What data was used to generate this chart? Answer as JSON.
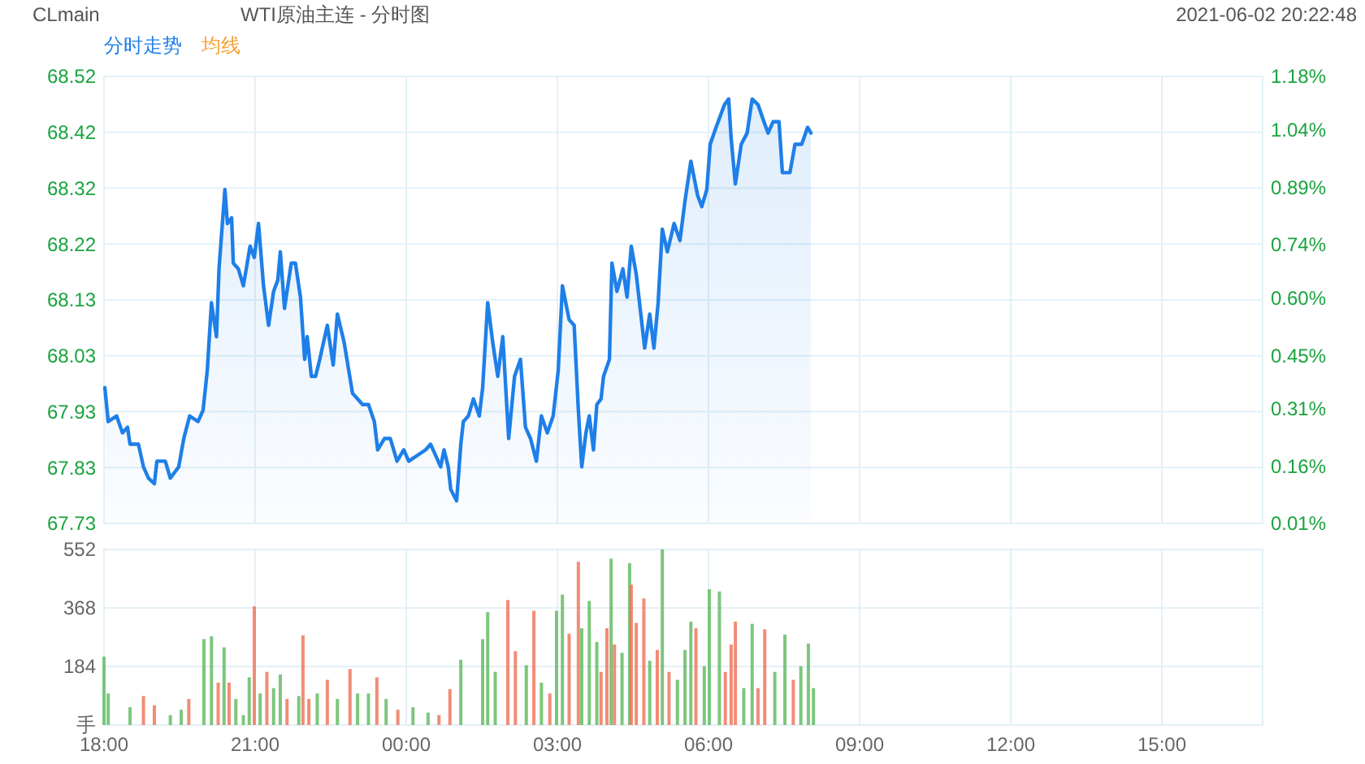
{
  "chart_data": [
    {
      "type": "area",
      "title": "WTI原油主连 - 分时图",
      "annotations": [
        "CLmain",
        "2021-06-02 20:22:48"
      ],
      "xlim": [
        "2021-06-01T18:00",
        "2021-06-02T17:00"
      ],
      "xticks": [
        {
          "value": "2021-06-01T18:00",
          "label": null
        },
        {
          "value": "2021-06-01T21:00",
          "label": null
        },
        {
          "value": "2021-06-02T00:00",
          "label": null
        },
        {
          "value": "2021-06-02T03:00",
          "label": null
        },
        {
          "value": "2021-06-02T06:00",
          "label": null
        },
        {
          "value": "2021-06-02T09:00",
          "label": null
        },
        {
          "value": "2021-06-02T12:00",
          "label": null
        },
        {
          "value": "2021-06-02T15:00",
          "label": null
        }
      ],
      "ylim": [
        67.73,
        68.52
      ],
      "yticks": [
        {
          "value": 67.73,
          "label": "67.73"
        },
        {
          "value": 67.82875,
          "label": "67.83"
        },
        {
          "value": 67.9275,
          "label": "67.93"
        },
        {
          "value": 68.02625,
          "label": "68.03"
        },
        {
          "value": 68.125,
          "label": "68.13"
        },
        {
          "value": 68.22375,
          "label": "68.22"
        },
        {
          "value": 68.3225,
          "label": "68.32"
        },
        {
          "value": 68.42125,
          "label": "68.42"
        },
        {
          "value": 68.52,
          "label": "68.52"
        }
      ],
      "y2lim": [
        0.01,
        1.18
      ],
      "y2ticks": [
        {
          "value": 0.01,
          "label": "0.01%"
        },
        {
          "value": 0.16,
          "label": "0.16%"
        },
        {
          "value": 0.31,
          "label": "0.31%"
        },
        {
          "value": 0.45,
          "label": "0.45%"
        },
        {
          "value": 0.6,
          "label": "0.60%"
        },
        {
          "value": 0.74,
          "label": "0.74%"
        },
        {
          "value": 0.89,
          "label": "0.89%"
        },
        {
          "value": 1.04,
          "label": "1.04%"
        },
        {
          "value": 1.18,
          "label": "1.18%"
        }
      ],
      "grid": true,
      "legend": "top left",
      "tick_labels": "y",
      "series": [
        {
          "name": "分时走势",
          "color": "#1e7fe8",
          "x": [
            "2021-06-01T18:01",
            "2021-06-01T18:05",
            "2021-06-01T18:15",
            "2021-06-01T18:22",
            "2021-06-01T18:28",
            "2021-06-01T18:31",
            "2021-06-01T18:41",
            "2021-06-01T18:47",
            "2021-06-01T18:53",
            "2021-06-01T19:00",
            "2021-06-01T19:03",
            "2021-06-01T19:13",
            "2021-06-01T19:19",
            "2021-06-01T19:29",
            "2021-06-01T19:35",
            "2021-06-01T19:42",
            "2021-06-01T19:52",
            "2021-06-01T19:58",
            "2021-06-01T20:03",
            "2021-06-01T20:08",
            "2021-06-01T20:14",
            "2021-06-01T20:17",
            "2021-06-01T20:24",
            "2021-06-01T20:27",
            "2021-06-01T20:32",
            "2021-06-01T20:34",
            "2021-06-01T20:40",
            "2021-06-01T20:46",
            "2021-06-01T20:54",
            "2021-06-01T20:59",
            "2021-06-01T21:04",
            "2021-06-01T21:10",
            "2021-06-01T21:16",
            "2021-06-01T21:22",
            "2021-06-01T21:27",
            "2021-06-01T21:30",
            "2021-06-01T21:35",
            "2021-06-01T21:43",
            "2021-06-01T21:48",
            "2021-06-01T21:54",
            "2021-06-01T21:59",
            "2021-06-01T22:02",
            "2021-06-01T22:07",
            "2021-06-01T22:12",
            "2021-06-01T22:17",
            "2021-06-01T22:26",
            "2021-06-01T22:33",
            "2021-06-01T22:38",
            "2021-06-01T22:46",
            "2021-06-01T22:56",
            "2021-06-01T23:02",
            "2021-06-01T23:08",
            "2021-06-01T23:15",
            "2021-06-01T23:22",
            "2021-06-01T23:26",
            "2021-06-01T23:34",
            "2021-06-01T23:41",
            "2021-06-01T23:49",
            "2021-06-01T23:57",
            "2021-06-02T00:03",
            "2021-06-02T00:13",
            "2021-06-02T00:23",
            "2021-06-02T00:29",
            "2021-06-02T00:35",
            "2021-06-02T00:41",
            "2021-06-02T00:45",
            "2021-06-02T00:50",
            "2021-06-02T00:53",
            "2021-06-02T01:00",
            "2021-06-02T01:05",
            "2021-06-02T01:08",
            "2021-06-02T01:14",
            "2021-06-02T01:20",
            "2021-06-02T01:27",
            "2021-06-02T01:31",
            "2021-06-02T01:37",
            "2021-06-02T01:43",
            "2021-06-02T01:49",
            "2021-06-02T01:55",
            "2021-06-02T02:02",
            "2021-06-02T02:09",
            "2021-06-02T02:16",
            "2021-06-02T02:22",
            "2021-06-02T02:28",
            "2021-06-02T02:35",
            "2021-06-02T02:41",
            "2021-06-02T02:48",
            "2021-06-02T02:55",
            "2021-06-02T03:01",
            "2021-06-02T03:06",
            "2021-06-02T03:14",
            "2021-06-02T03:20",
            "2021-06-02T03:25",
            "2021-06-02T03:29",
            "2021-06-02T03:34",
            "2021-06-02T03:38",
            "2021-06-02T03:43",
            "2021-06-02T03:47",
            "2021-06-02T03:52",
            "2021-06-02T03:55",
            "2021-06-02T04:02",
            "2021-06-02T04:05",
            "2021-06-02T04:11",
            "2021-06-02T04:18",
            "2021-06-02T04:23",
            "2021-06-02T04:28",
            "2021-06-02T04:34",
            "2021-06-02T04:44",
            "2021-06-02T04:50",
            "2021-06-02T04:55",
            "2021-06-02T05:00",
            "2021-06-02T05:05",
            "2021-06-02T05:11",
            "2021-06-02T05:19",
            "2021-06-02T05:26",
            "2021-06-02T05:32",
            "2021-06-02T05:39",
            "2021-06-02T05:47",
            "2021-06-02T05:52",
            "2021-06-02T05:58",
            "2021-06-02T06:02",
            "2021-06-02T06:09",
            "2021-06-02T06:14",
            "2021-06-02T06:19",
            "2021-06-02T06:24",
            "2021-06-02T06:27",
            "2021-06-02T06:32",
            "2021-06-02T06:39",
            "2021-06-02T06:46",
            "2021-06-02T06:52",
            "2021-06-02T06:59",
            "2021-06-02T07:06",
            "2021-06-02T07:11",
            "2021-06-02T07:17",
            "2021-06-02T07:24",
            "2021-06-02T07:28",
            "2021-06-02T07:37",
            "2021-06-02T07:43",
            "2021-06-02T07:51",
            "2021-06-02T07:58",
            "2021-06-02T08:02"
          ],
          "values": [
            67.97,
            67.91,
            67.92,
            67.89,
            67.9,
            67.87,
            67.87,
            67.83,
            67.81,
            67.8,
            67.84,
            67.84,
            67.81,
            67.83,
            67.88,
            67.92,
            67.91,
            67.93,
            68.0,
            68.12,
            68.06,
            68.18,
            68.32,
            68.26,
            68.27,
            68.19,
            68.18,
            68.15,
            68.22,
            68.2,
            68.26,
            68.15,
            68.08,
            68.14,
            68.16,
            68.21,
            68.11,
            68.19,
            68.19,
            68.13,
            68.02,
            68.06,
            67.99,
            67.99,
            68.02,
            68.08,
            68.01,
            68.1,
            68.05,
            67.96,
            67.95,
            67.94,
            67.94,
            67.91,
            67.86,
            67.88,
            67.88,
            67.84,
            67.86,
            67.84,
            67.85,
            67.86,
            67.87,
            67.85,
            67.83,
            67.86,
            67.83,
            67.79,
            67.77,
            67.87,
            67.91,
            67.92,
            67.95,
            67.92,
            67.97,
            68.12,
            68.05,
            67.99,
            68.06,
            67.88,
            67.99,
            68.02,
            67.9,
            67.88,
            67.84,
            67.92,
            67.89,
            67.92,
            68.0,
            68.15,
            68.09,
            68.08,
            67.93,
            67.83,
            67.89,
            67.92,
            67.86,
            67.94,
            67.95,
            67.99,
            68.02,
            68.19,
            68.14,
            68.18,
            68.13,
            68.22,
            68.17,
            68.04,
            68.1,
            68.04,
            68.12,
            68.25,
            68.21,
            68.26,
            68.23,
            68.3,
            68.37,
            68.31,
            68.29,
            68.32,
            68.4,
            68.43,
            68.45,
            68.47,
            68.48,
            68.41,
            68.33,
            68.4,
            68.42,
            68.48,
            68.47,
            68.44,
            68.42,
            68.44,
            68.44,
            68.35,
            68.35,
            68.4,
            68.4,
            68.43,
            68.42
          ]
        },
        {
          "name": "均线",
          "color": "#f7a035"
        }
      ]
    },
    {
      "type": "bar",
      "xlim": [
        "2021-06-01T18:00",
        "2021-06-02T17:00"
      ],
      "xticks": [
        {
          "value": "2021-06-01T18:00",
          "label": "18:00"
        },
        {
          "value": "2021-06-01T21:00",
          "label": "21:00"
        },
        {
          "value": "2021-06-02T00:00",
          "label": "00:00"
        },
        {
          "value": "2021-06-02T03:00",
          "label": "03:00"
        },
        {
          "value": "2021-06-02T06:00",
          "label": "06:00"
        },
        {
          "value": "2021-06-02T09:00",
          "label": "09:00"
        },
        {
          "value": "2021-06-02T12:00",
          "label": "12:00"
        },
        {
          "value": "2021-06-02T15:00",
          "label": "15:00"
        }
      ],
      "ylim": [
        0,
        552
      ],
      "yticks": [
        {
          "value": 0,
          "label": "手"
        },
        184,
        368,
        552
      ],
      "grid": true,
      "x": [
        "2021-06-01T18:00",
        "2021-06-01T18:05",
        "2021-06-01T18:31",
        "2021-06-01T18:47",
        "2021-06-01T19:00",
        "2021-06-01T19:19",
        "2021-06-01T19:32",
        "2021-06-01T19:41",
        "2021-06-01T19:59",
        "2021-06-01T20:08",
        "2021-06-01T20:16",
        "2021-06-01T20:23",
        "2021-06-01T20:29",
        "2021-06-01T20:37",
        "2021-06-01T20:46",
        "2021-06-01T20:53",
        "2021-06-01T20:59",
        "2021-06-01T21:06",
        "2021-06-01T21:14",
        "2021-06-01T21:22",
        "2021-06-01T21:30",
        "2021-06-01T21:38",
        "2021-06-01T21:52",
        "2021-06-01T21:57",
        "2021-06-01T22:04",
        "2021-06-01T22:14",
        "2021-06-01T22:26",
        "2021-06-01T22:38",
        "2021-06-01T22:53",
        "2021-06-01T23:02",
        "2021-06-01T23:15",
        "2021-06-01T23:25",
        "2021-06-01T23:36",
        "2021-06-01T23:50",
        "2021-06-02T00:08",
        "2021-06-02T00:26",
        "2021-06-02T00:39",
        "2021-06-02T00:52",
        "2021-06-02T01:05",
        "2021-06-02T01:31",
        "2021-06-02T01:37",
        "2021-06-02T01:46",
        "2021-06-02T02:01",
        "2021-06-02T02:10",
        "2021-06-02T02:23",
        "2021-06-02T02:32",
        "2021-06-02T02:41",
        "2021-06-02T02:51",
        "2021-06-02T02:59",
        "2021-06-02T03:06",
        "2021-06-02T03:14",
        "2021-06-02T03:25",
        "2021-06-02T03:29",
        "2021-06-02T03:38",
        "2021-06-02T03:47",
        "2021-06-02T03:52",
        "2021-06-02T03:59",
        "2021-06-02T04:04",
        "2021-06-02T04:08",
        "2021-06-02T04:17",
        "2021-06-02T04:26",
        "2021-06-02T04:28",
        "2021-06-02T04:34",
        "2021-06-02T04:43",
        "2021-06-02T04:50",
        "2021-06-02T04:59",
        "2021-06-02T05:05",
        "2021-06-02T05:13",
        "2021-06-02T05:23",
        "2021-06-02T05:32",
        "2021-06-02T05:39",
        "2021-06-02T05:45",
        "2021-06-02T05:55",
        "2021-06-02T06:01",
        "2021-06-02T06:13",
        "2021-06-02T06:20",
        "2021-06-02T06:27",
        "2021-06-02T06:32",
        "2021-06-02T06:42",
        "2021-06-02T06:52",
        "2021-06-02T06:59",
        "2021-06-02T07:07",
        "2021-06-02T07:19",
        "2021-06-02T07:31",
        "2021-06-02T07:41",
        "2021-06-02T07:50",
        "2021-06-02T07:59",
        "2021-06-02T08:05"
      ],
      "values": [
        215,
        99,
        56,
        91,
        62,
        31,
        48,
        82,
        270,
        279,
        133,
        244,
        133,
        82,
        31,
        150,
        373,
        99,
        167,
        116,
        159,
        82,
        91,
        282,
        82,
        99,
        142,
        82,
        176,
        99,
        99,
        150,
        82,
        48,
        56,
        39,
        31,
        113,
        205,
        270,
        355,
        167,
        393,
        232,
        188,
        359,
        133,
        99,
        359,
        410,
        287,
        513,
        304,
        390,
        261,
        167,
        304,
        523,
        253,
        227,
        509,
        441,
        321,
        398,
        202,
        236,
        552,
        167,
        142,
        236,
        325,
        304,
        185,
        427,
        420,
        167,
        253,
        325,
        116,
        318,
        116,
        301,
        167,
        284,
        142,
        185,
        256,
        116
      ],
      "colors": [
        "#5cb85c",
        "#5cb85c",
        "#5cb85c",
        "#ef6f55",
        "#ef6f55",
        "#5cb85c",
        "#5cb85c",
        "#ef6f55",
        "#5cb85c",
        "#5cb85c",
        "#ef6f55",
        "#5cb85c",
        "#ef6f55",
        "#5cb85c",
        "#5cb85c",
        "#5cb85c",
        "#ef6f55",
        "#5cb85c",
        "#ef6f55",
        "#5cb85c",
        "#5cb85c",
        "#ef6f55",
        "#5cb85c",
        "#ef6f55",
        "#ef6f55",
        "#5cb85c",
        "#ef6f55",
        "#5cb85c",
        "#ef6f55",
        "#5cb85c",
        "#5cb85c",
        "#ef6f55",
        "#5cb85c",
        "#ef6f55",
        "#5cb85c",
        "#5cb85c",
        "#ef6f55",
        "#ef6f55",
        "#5cb85c",
        "#5cb85c",
        "#5cb85c",
        "#5cb85c",
        "#ef6f55",
        "#ef6f55",
        "#5cb85c",
        "#ef6f55",
        "#5cb85c",
        "#ef6f55",
        "#5cb85c",
        "#5cb85c",
        "#ef6f55",
        "#ef6f55",
        "#5cb85c",
        "#5cb85c",
        "#5cb85c",
        "#ef6f55",
        "#ef6f55",
        "#5cb85c",
        "#ef6f55",
        "#5cb85c",
        "#5cb85c",
        "#ef6f55",
        "#ef6f55",
        "#ef6f55",
        "#5cb85c",
        "#ef6f55",
        "#5cb85c",
        "#ef6f55",
        "#5cb85c",
        "#5cb85c",
        "#5cb85c",
        "#ef6f55",
        "#5cb85c",
        "#5cb85c",
        "#5cb85c",
        "#ef6f55",
        "#ef6f55",
        "#ef6f55",
        "#5cb85c",
        "#5cb85c",
        "#ef6f55",
        "#ef6f55",
        "#5cb85c",
        "#5cb85c",
        "#ef6f55",
        "#5cb85c",
        "#5cb85c",
        "#5cb85c"
      ]
    }
  ]
}
